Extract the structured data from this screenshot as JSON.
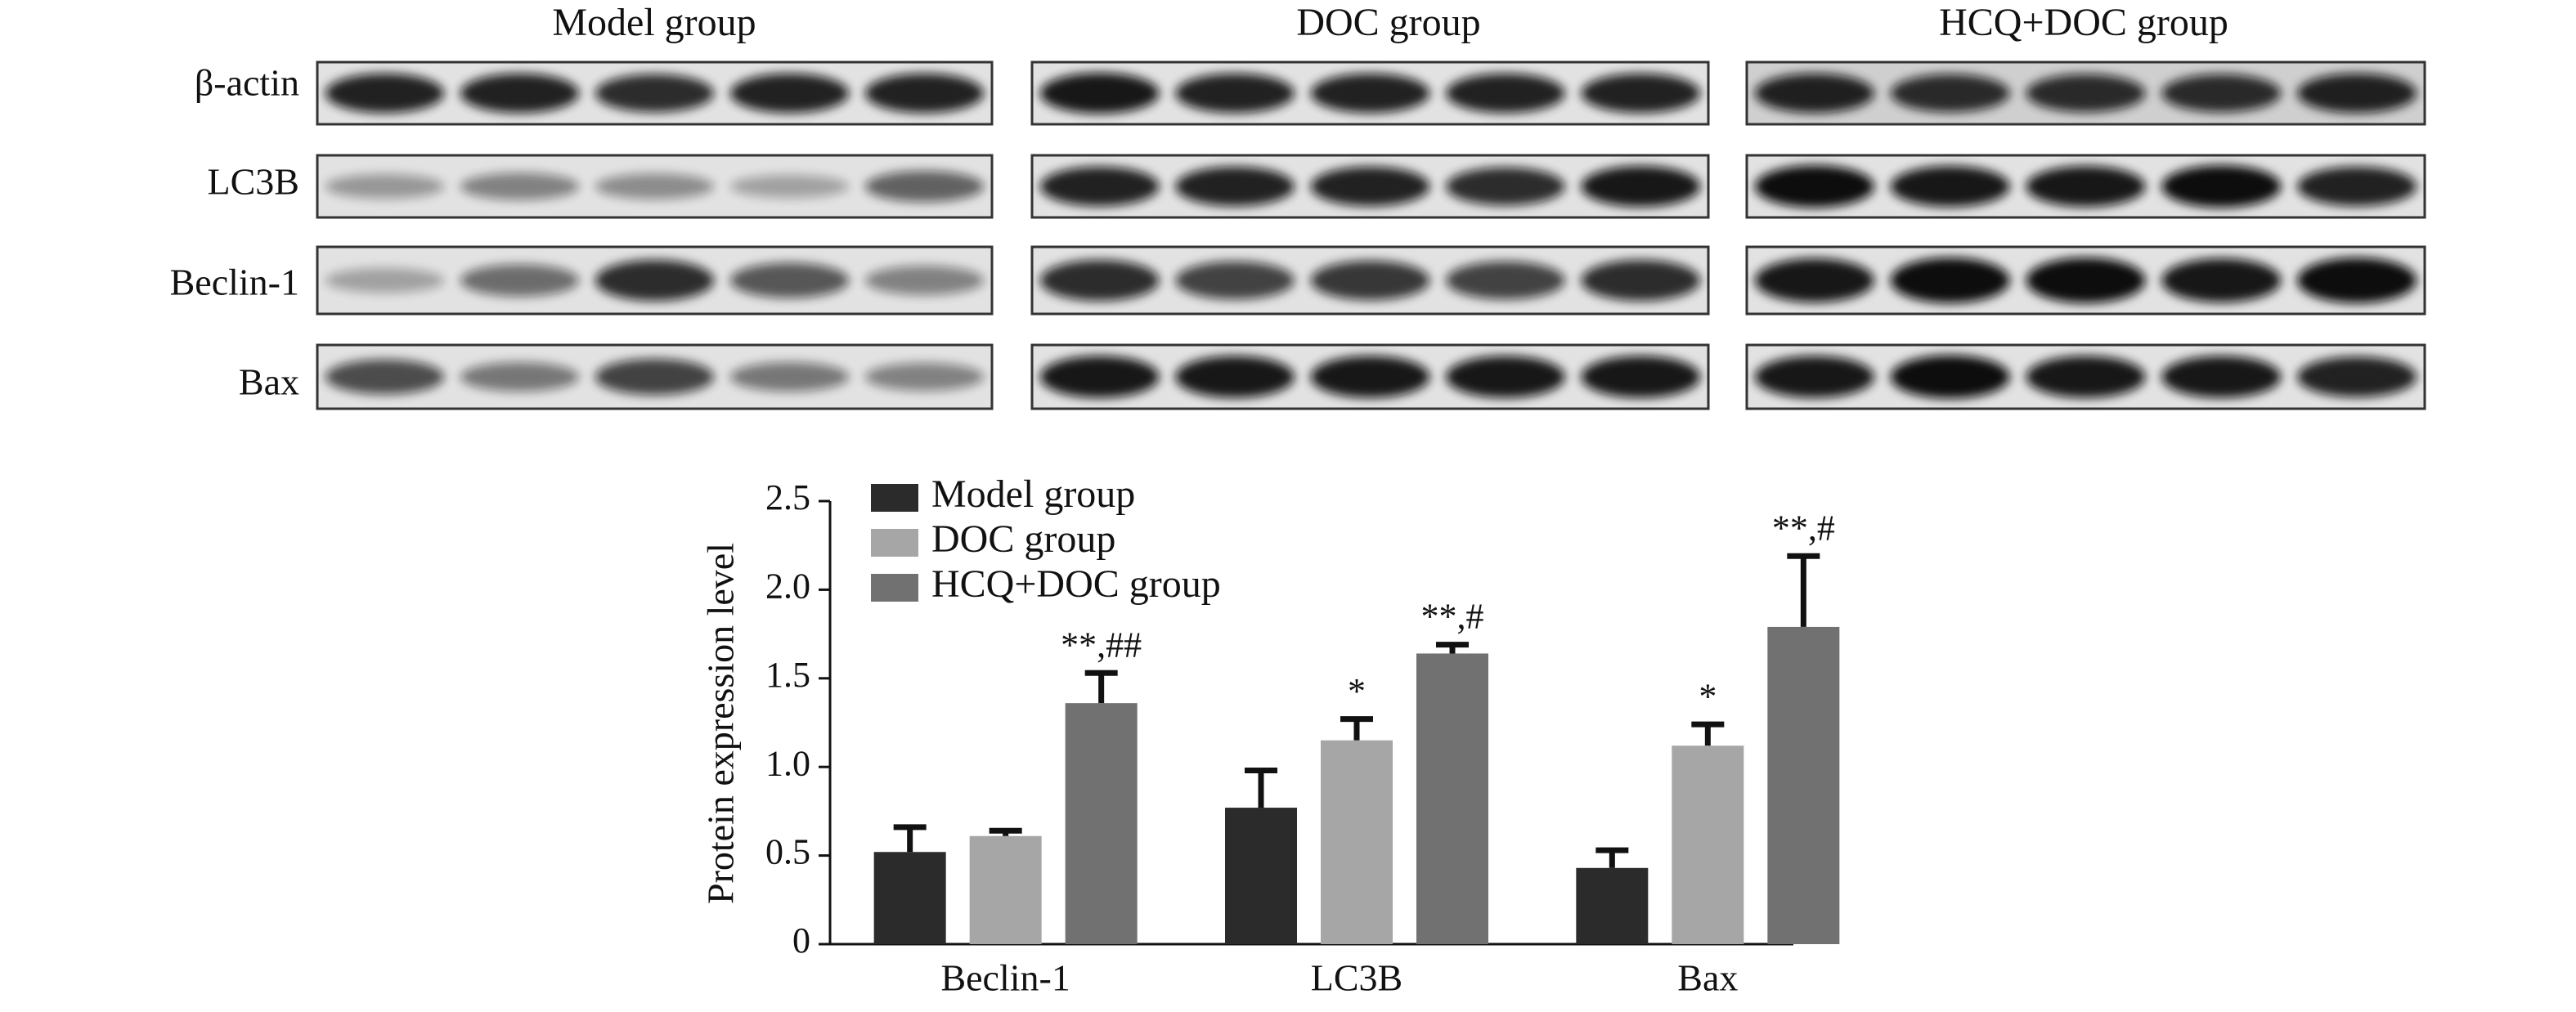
{
  "blot": {
    "groups": [
      "Model group",
      "DOC group",
      "HCQ+DOC group"
    ],
    "rows": [
      "β-actin",
      "LC3B",
      "Beclin-1",
      "Bax"
    ]
  },
  "chart_data": {
    "type": "bar",
    "y_label": "Protein expression level",
    "categories": [
      "Beclin-1",
      "LC3B",
      "Bax"
    ],
    "series": [
      {
        "name": "Model group",
        "color": "#2b2b2b",
        "values": [
          0.52,
          0.77,
          0.43
        ],
        "errors": [
          0.14,
          0.21,
          0.1
        ],
        "annotations": [
          null,
          null,
          null
        ]
      },
      {
        "name": "DOC group",
        "color": "#a6a6a6",
        "values": [
          0.61,
          1.15,
          1.12
        ],
        "errors": [
          0.03,
          0.12,
          0.12
        ],
        "annotations": [
          null,
          "*",
          "*"
        ]
      },
      {
        "name": "HCQ+DOC group",
        "color": "#717171",
        "values": [
          1.36,
          1.64,
          1.79
        ],
        "errors": [
          0.17,
          0.05,
          0.4
        ],
        "annotations": [
          "**,##",
          "**,#",
          "**,#"
        ]
      }
    ],
    "ylim": [
      0,
      2.5
    ],
    "yticks": [
      0,
      0.5,
      {
        "value": 1,
        "label": "1.0"
      },
      1.5,
      {
        "value": 2,
        "label": "2.0"
      },
      2.5
    ],
    "grid": false
  }
}
